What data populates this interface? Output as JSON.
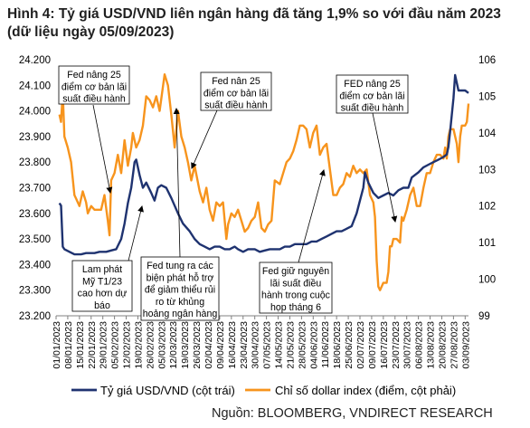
{
  "title": "Hình 4: Tỷ giá USD/VND liên ngân hàng đã tăng 1,9% so với đầu năm 2023  (dữ liệu ngày 05/09/2023)",
  "source": "Nguồn: BLOOMBERG, VNDIRECT RESEARCH",
  "colors": {
    "usdvnd": "#1f3370",
    "dxy": "#f7941d",
    "grid": "#d9d9d9"
  },
  "chart_data": {
    "type": "line",
    "title": "Hình 4: Tỷ giá USD/VND liên ngân hàng đã tăng 1,9% so với đầu năm 2023  (dữ liệu ngày 05/09/2023)",
    "left_axis": {
      "ylim": [
        23200,
        24200
      ],
      "ticks": [
        "23.200",
        "23.300",
        "23.400",
        "23.500",
        "23.600",
        "23.700",
        "23.800",
        "23.900",
        "24.000",
        "24.100",
        "24.200"
      ]
    },
    "right_axis": {
      "ylim": [
        99,
        106
      ],
      "ticks": [
        "99",
        "100",
        "101",
        "102",
        "103",
        "104",
        "105",
        "106"
      ]
    },
    "x_tick_labels": [
      "01/01/2023",
      "08/01/2023",
      "15/01/2023",
      "22/01/2023",
      "29/01/2023",
      "05/02/2023",
      "12/02/2023",
      "19/02/2023",
      "26/02/2023",
      "05/03/2023",
      "12/03/2023",
      "19/03/2023",
      "26/03/2023",
      "02/04/2023",
      "09/04/2023",
      "16/04/2023",
      "23/04/2023",
      "30/04/2023",
      "07/05/2023",
      "14/05/2023",
      "21/05/2023",
      "28/05/2023",
      "04/06/2023",
      "11/06/2023",
      "18/06/2023",
      "25/06/2023",
      "02/07/2023",
      "09/07/2023",
      "16/07/2023",
      "23/07/2023",
      "30/07/2023",
      "06/08/2023",
      "13/08/2023",
      "20/08/2023",
      "27/08/2023",
      "03/09/2023"
    ],
    "legend": "bottom",
    "grid": false,
    "series": [
      {
        "name": "Tỷ giá USD/VND (cột trái)",
        "axis": "left",
        "points": [
          [
            "2023-01-03",
            23640
          ],
          [
            "2023-01-04",
            23630
          ],
          [
            "2023-01-05",
            23470
          ],
          [
            "2023-01-06",
            23460
          ],
          [
            "2023-01-09",
            23450
          ],
          [
            "2023-01-12",
            23440
          ],
          [
            "2023-01-16",
            23440
          ],
          [
            "2023-01-19",
            23445
          ],
          [
            "2023-01-24",
            23445
          ],
          [
            "2023-01-27",
            23450
          ],
          [
            "2023-01-31",
            23450
          ],
          [
            "2023-02-03",
            23455
          ],
          [
            "2023-02-06",
            23460
          ],
          [
            "2023-02-09",
            23500
          ],
          [
            "2023-02-11",
            23560
          ],
          [
            "2023-02-13",
            23640
          ],
          [
            "2023-02-15",
            23700
          ],
          [
            "2023-02-17",
            23800
          ],
          [
            "2023-02-18",
            23810
          ],
          [
            "2023-02-20",
            23750
          ],
          [
            "2023-02-22",
            23700
          ],
          [
            "2023-02-24",
            23720
          ],
          [
            "2023-02-27",
            23680
          ],
          [
            "2023-03-01",
            23650
          ],
          [
            "2023-03-03",
            23700
          ],
          [
            "2023-03-05",
            23710
          ],
          [
            "2023-03-08",
            23700
          ],
          [
            "2023-03-11",
            23660
          ],
          [
            "2023-03-15",
            23600
          ],
          [
            "2023-03-18",
            23560
          ],
          [
            "2023-03-22",
            23530
          ],
          [
            "2023-03-25",
            23500
          ],
          [
            "2023-03-28",
            23480
          ],
          [
            "2023-03-31",
            23470
          ],
          [
            "2023-04-03",
            23460
          ],
          [
            "2023-04-06",
            23470
          ],
          [
            "2023-04-09",
            23470
          ],
          [
            "2023-04-12",
            23460
          ],
          [
            "2023-04-15",
            23460
          ],
          [
            "2023-04-18",
            23470
          ],
          [
            "2023-04-20",
            23460
          ],
          [
            "2023-04-23",
            23450
          ],
          [
            "2023-04-26",
            23460
          ],
          [
            "2023-04-30",
            23460
          ],
          [
            "2023-05-03",
            23450
          ],
          [
            "2023-05-06",
            23455
          ],
          [
            "2023-05-09",
            23460
          ],
          [
            "2023-05-12",
            23460
          ],
          [
            "2023-05-15",
            23460
          ],
          [
            "2023-05-18",
            23470
          ],
          [
            "2023-05-21",
            23470
          ],
          [
            "2023-05-24",
            23480
          ],
          [
            "2023-05-27",
            23480
          ],
          [
            "2023-05-31",
            23480
          ],
          [
            "2023-06-03",
            23490
          ],
          [
            "2023-06-06",
            23490
          ],
          [
            "2023-06-09",
            23500
          ],
          [
            "2023-06-12",
            23510
          ],
          [
            "2023-06-15",
            23520
          ],
          [
            "2023-06-18",
            23530
          ],
          [
            "2023-06-21",
            23530
          ],
          [
            "2023-06-24",
            23540
          ],
          [
            "2023-06-27",
            23550
          ],
          [
            "2023-06-30",
            23600
          ],
          [
            "2023-07-02",
            23650
          ],
          [
            "2023-07-04",
            23700
          ],
          [
            "2023-07-05",
            23760
          ],
          [
            "2023-07-07",
            23720
          ],
          [
            "2023-07-10",
            23680
          ],
          [
            "2023-07-13",
            23660
          ],
          [
            "2023-07-16",
            23670
          ],
          [
            "2023-07-19",
            23680
          ],
          [
            "2023-07-22",
            23670
          ],
          [
            "2023-07-25",
            23690
          ],
          [
            "2023-07-28",
            23700
          ],
          [
            "2023-07-31",
            23700
          ],
          [
            "2023-08-02",
            23740
          ],
          [
            "2023-08-04",
            23750
          ],
          [
            "2023-08-06",
            23760
          ],
          [
            "2023-08-09",
            23780
          ],
          [
            "2023-08-12",
            23790
          ],
          [
            "2023-08-15",
            23800
          ],
          [
            "2023-08-18",
            23810
          ],
          [
            "2023-08-21",
            23820
          ],
          [
            "2023-08-23",
            23830
          ],
          [
            "2023-08-24",
            23860
          ],
          [
            "2023-08-25",
            23920
          ],
          [
            "2023-08-27",
            24050
          ],
          [
            "2023-08-28",
            24140
          ],
          [
            "2023-08-30",
            24080
          ],
          [
            "2023-09-01",
            24080
          ],
          [
            "2023-09-03",
            24080
          ],
          [
            "2023-09-05",
            24070
          ]
        ]
      },
      {
        "name": "Chỉ số dollar index (điểm, cột phải)",
        "axis": "right",
        "points": [
          [
            "2023-01-03",
            104.5
          ],
          [
            "2023-01-04",
            104.3
          ],
          [
            "2023-01-05",
            105.1
          ],
          [
            "2023-01-06",
            103.9
          ],
          [
            "2023-01-08",
            103.6
          ],
          [
            "2023-01-10",
            103.2
          ],
          [
            "2023-01-12",
            102.3
          ],
          [
            "2023-01-13",
            102.2
          ],
          [
            "2023-01-15",
            102.0
          ],
          [
            "2023-01-17",
            102.4
          ],
          [
            "2023-01-19",
            102.1
          ],
          [
            "2023-01-20",
            101.8
          ],
          [
            "2023-01-22",
            102.0
          ],
          [
            "2023-01-24",
            101.9
          ],
          [
            "2023-01-26",
            101.9
          ],
          [
            "2023-01-28",
            101.9
          ],
          [
            "2023-01-30",
            102.3
          ],
          [
            "2023-02-01",
            101.6
          ],
          [
            "2023-02-02",
            101.2
          ],
          [
            "2023-02-03",
            102.7
          ],
          [
            "2023-02-05",
            102.9
          ],
          [
            "2023-02-07",
            103.4
          ],
          [
            "2023-02-09",
            102.9
          ],
          [
            "2023-02-11",
            103.8
          ],
          [
            "2023-02-13",
            103.1
          ],
          [
            "2023-02-15",
            103.6
          ],
          [
            "2023-02-16",
            104.0
          ],
          [
            "2023-02-18",
            103.6
          ],
          [
            "2023-02-20",
            103.8
          ],
          [
            "2023-02-22",
            104.2
          ],
          [
            "2023-02-24",
            105.0
          ],
          [
            "2023-02-26",
            104.9
          ],
          [
            "2023-02-28",
            104.7
          ],
          [
            "2023-03-02",
            105.0
          ],
          [
            "2023-03-04",
            104.6
          ],
          [
            "2023-03-07",
            105.6
          ],
          [
            "2023-03-09",
            105.3
          ],
          [
            "2023-03-11",
            104.5
          ],
          [
            "2023-03-13",
            103.6
          ],
          [
            "2023-03-15",
            104.6
          ],
          [
            "2023-03-17",
            103.9
          ],
          [
            "2023-03-19",
            103.6
          ],
          [
            "2023-03-21",
            103.2
          ],
          [
            "2023-03-23",
            102.7
          ],
          [
            "2023-03-25",
            103.1
          ],
          [
            "2023-03-28",
            102.4
          ],
          [
            "2023-03-30",
            102.1
          ],
          [
            "2023-04-01",
            102.5
          ],
          [
            "2023-04-03",
            101.9
          ],
          [
            "2023-04-05",
            101.6
          ],
          [
            "2023-04-07",
            102.1
          ],
          [
            "2023-04-09",
            102.0
          ],
          [
            "2023-04-11",
            102.1
          ],
          [
            "2023-04-13",
            101.1
          ],
          [
            "2023-04-14",
            101.5
          ],
          [
            "2023-04-16",
            101.8
          ],
          [
            "2023-04-18",
            101.7
          ],
          [
            "2023-04-20",
            101.9
          ],
          [
            "2023-04-22",
            101.6
          ],
          [
            "2023-04-24",
            101.3
          ],
          [
            "2023-04-26",
            101.4
          ],
          [
            "2023-04-28",
            101.6
          ],
          [
            "2023-04-30",
            101.7
          ],
          [
            "2023-05-02",
            102.1
          ],
          [
            "2023-05-04",
            101.4
          ],
          [
            "2023-05-06",
            101.3
          ],
          [
            "2023-05-08",
            101.5
          ],
          [
            "2023-05-10",
            101.6
          ],
          [
            "2023-05-12",
            102.7
          ],
          [
            "2023-05-15",
            102.6
          ],
          [
            "2023-05-17",
            102.9
          ],
          [
            "2023-05-19",
            103.2
          ],
          [
            "2023-05-21",
            103.3
          ],
          [
            "2023-05-23",
            103.5
          ],
          [
            "2023-05-25",
            103.8
          ],
          [
            "2023-05-27",
            104.2
          ],
          [
            "2023-05-29",
            104.2
          ],
          [
            "2023-05-31",
            104.1
          ],
          [
            "2023-06-02",
            103.6
          ],
          [
            "2023-06-04",
            104.0
          ],
          [
            "2023-06-06",
            104.2
          ],
          [
            "2023-06-08",
            103.4
          ],
          [
            "2023-06-10",
            103.6
          ],
          [
            "2023-06-12",
            103.7
          ],
          [
            "2023-06-14",
            103.0
          ],
          [
            "2023-06-16",
            102.3
          ],
          [
            "2023-06-18",
            102.3
          ],
          [
            "2023-06-20",
            102.5
          ],
          [
            "2023-06-22",
            102.6
          ],
          [
            "2023-06-24",
            102.9
          ],
          [
            "2023-06-26",
            102.8
          ],
          [
            "2023-06-28",
            103.1
          ],
          [
            "2023-06-30",
            102.9
          ],
          [
            "2023-07-02",
            103.0
          ],
          [
            "2023-07-04",
            102.9
          ],
          [
            "2023-07-06",
            103.0
          ],
          [
            "2023-07-08",
            102.3
          ],
          [
            "2023-07-10",
            102.1
          ],
          [
            "2023-07-11",
            101.7
          ],
          [
            "2023-07-12",
            100.5
          ],
          [
            "2023-07-13",
            99.8
          ],
          [
            "2023-07-14",
            99.7
          ],
          [
            "2023-07-16",
            99.9
          ],
          [
            "2023-07-18",
            99.9
          ],
          [
            "2023-07-19",
            100.2
          ],
          [
            "2023-07-20",
            100.9
          ],
          [
            "2023-07-21",
            100.9
          ],
          [
            "2023-07-22",
            101.1
          ],
          [
            "2023-07-24",
            101.1
          ],
          [
            "2023-07-26",
            101.0
          ],
          [
            "2023-07-27",
            101.7
          ],
          [
            "2023-07-28",
            101.6
          ],
          [
            "2023-07-30",
            101.9
          ],
          [
            "2023-08-01",
            102.3
          ],
          [
            "2023-08-03",
            102.5
          ],
          [
            "2023-08-05",
            102.0
          ],
          [
            "2023-08-07",
            102.0
          ],
          [
            "2023-08-09",
            102.5
          ],
          [
            "2023-08-11",
            102.9
          ],
          [
            "2023-08-13",
            102.9
          ],
          [
            "2023-08-15",
            103.2
          ],
          [
            "2023-08-17",
            103.4
          ],
          [
            "2023-08-19",
            103.4
          ],
          [
            "2023-08-21",
            103.3
          ],
          [
            "2023-08-22",
            103.6
          ],
          [
            "2023-08-23",
            103.3
          ],
          [
            "2023-08-24",
            103.9
          ],
          [
            "2023-08-25",
            104.1
          ],
          [
            "2023-08-27",
            104.1
          ],
          [
            "2023-08-29",
            103.7
          ],
          [
            "2023-08-30",
            103.2
          ],
          [
            "2023-08-31",
            103.9
          ],
          [
            "2023-09-01",
            104.2
          ],
          [
            "2023-09-03",
            104.2
          ],
          [
            "2023-09-04",
            104.3
          ],
          [
            "2023-09-05",
            104.8
          ]
        ]
      }
    ],
    "annotations": [
      {
        "id": "fed-jan",
        "lines": [
          "Fed nâng 25",
          "điểm cơ bản lãi",
          "suất điều hành"
        ]
      },
      {
        "id": "fed-mar",
        "lines": [
          "Fed nân 25",
          "điểm cơ bản lãi",
          "suất điều hành"
        ]
      },
      {
        "id": "fed-jul",
        "lines": [
          "FED nâng 25",
          "điểm cơ bản lãi",
          "suất điều hành"
        ]
      },
      {
        "id": "us-cpi",
        "lines": [
          "Lam phát",
          "Mỹ T1/23",
          "cao hơn dự",
          "báo"
        ]
      },
      {
        "id": "fed-support",
        "lines": [
          "Fed tung ra các",
          "biện phát hỗ trợ",
          "để giảm thiểu rủi",
          "ro từ khủng",
          "hoảng ngân hàng"
        ]
      },
      {
        "id": "fed-hold",
        "lines": [
          "Fed giữ nguyên",
          "lãi suất điều",
          "hành trong cuộc",
          "họp tháng 6"
        ]
      }
    ]
  }
}
